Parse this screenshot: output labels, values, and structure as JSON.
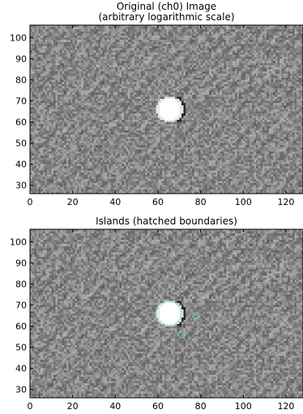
{
  "chart_data": [
    {
      "type": "heatmap",
      "title_line1": "Original (ch0) Image",
      "title_line2": "(arbitrary logarithmic scale)",
      "xlim": [
        0,
        128
      ],
      "ylim": [
        26,
        106
      ],
      "xticks": [
        0,
        20,
        40,
        60,
        80,
        100,
        120
      ],
      "yticks": [
        30,
        40,
        50,
        60,
        70,
        80,
        90,
        100
      ],
      "colormap": "gray",
      "source": {
        "x": 65,
        "y": 66,
        "radius": 5
      }
    },
    {
      "type": "heatmap",
      "title_line1": "Islands (hatched boundaries)",
      "xlim": [
        0,
        128
      ],
      "ylim": [
        26,
        106
      ],
      "xticks": [
        0,
        20,
        40,
        60,
        80,
        100,
        120
      ],
      "yticks": [
        30,
        40,
        50,
        60,
        70,
        80,
        90,
        100
      ],
      "colormap": "gray",
      "boundary_color": "#66dddd",
      "source": {
        "x": 65,
        "y": 66,
        "radius": 5
      },
      "islands": [
        {
          "x": 65,
          "y": 66,
          "radius": 6
        },
        {
          "x": 78,
          "y": 65,
          "radius": 1.5
        },
        {
          "x": 71,
          "y": 56,
          "radius": 1.5
        }
      ]
    }
  ]
}
